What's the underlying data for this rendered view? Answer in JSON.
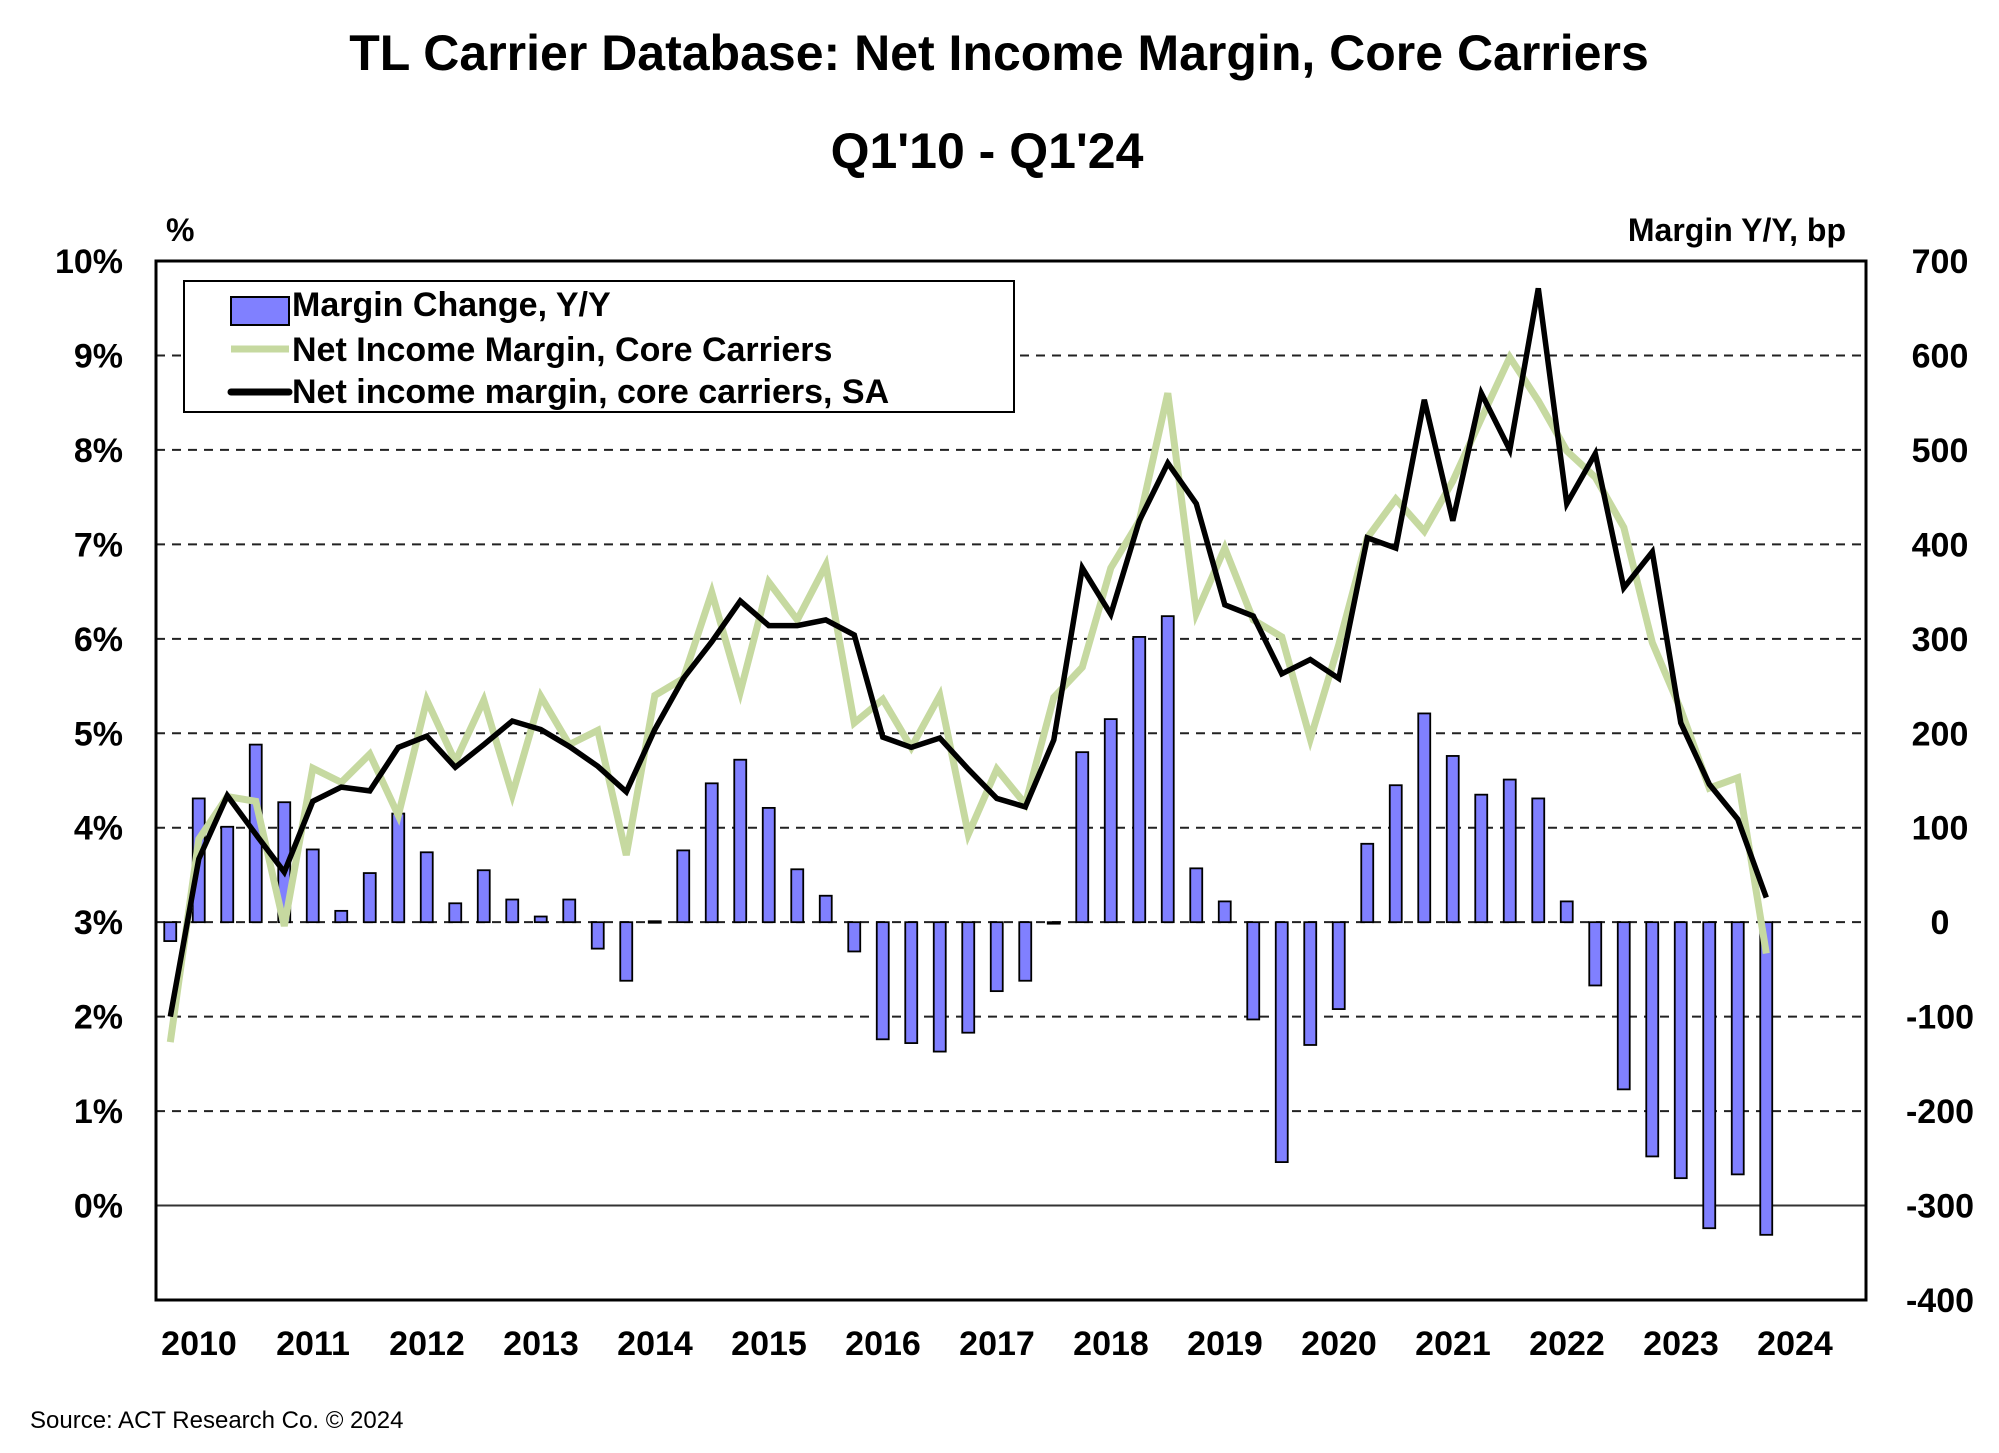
{
  "chart_data": {
    "type": "bar+line",
    "title": "TL Carrier Database: Net Income Margin, Core Carriers",
    "subtitle": "Q1'10 - Q1'24",
    "left_axis": {
      "label": "%",
      "range": [
        -1,
        10
      ],
      "ticks": [
        0,
        1,
        2,
        3,
        4,
        5,
        6,
        7,
        8,
        9,
        10
      ],
      "tick_labels": [
        "0%",
        "1%",
        "2%",
        "3%",
        "4%",
        "5%",
        "6%",
        "7%",
        "8%",
        "9%",
        "10%"
      ]
    },
    "right_axis": {
      "label": "Margin Y/Y, bp",
      "range": [
        -400,
        700
      ],
      "ticks": [
        -400,
        -300,
        -200,
        -100,
        0,
        100,
        200,
        300,
        400,
        500,
        600,
        700
      ],
      "tick_labels": [
        "-400",
        "-300",
        "-200",
        "-100",
        "0",
        "100",
        "200",
        "300",
        "400",
        "500",
        "600",
        "700"
      ]
    },
    "x_axis": {
      "quarter_slots": 60,
      "year_labels": [
        "2010",
        "2011",
        "2012",
        "2013",
        "2014",
        "2015",
        "2016",
        "2017",
        "2018",
        "2019",
        "2020",
        "2021",
        "2022",
        "2023",
        "2024"
      ]
    },
    "grid": "horizontal dashed",
    "legend_position": "top-left",
    "x": [
      "Q1'10",
      "Q2'10",
      "Q3'10",
      "Q4'10",
      "Q1'11",
      "Q2'11",
      "Q3'11",
      "Q4'11",
      "Q1'12",
      "Q2'12",
      "Q3'12",
      "Q4'12",
      "Q1'13",
      "Q2'13",
      "Q3'13",
      "Q4'13",
      "Q1'14",
      "Q2'14",
      "Q3'14",
      "Q4'14",
      "Q1'15",
      "Q2'15",
      "Q3'15",
      "Q4'15",
      "Q1'16",
      "Q2'16",
      "Q3'16",
      "Q4'16",
      "Q1'17",
      "Q2'17",
      "Q3'17",
      "Q4'17",
      "Q1'18",
      "Q2'18",
      "Q3'18",
      "Q4'18",
      "Q1'19",
      "Q2'19",
      "Q3'19",
      "Q4'19",
      "Q1'20",
      "Q2'20",
      "Q3'20",
      "Q4'20",
      "Q1'21",
      "Q2'21",
      "Q3'21",
      "Q4'21",
      "Q1'22",
      "Q2'22",
      "Q3'22",
      "Q4'22",
      "Q1'23",
      "Q2'23",
      "Q3'23",
      "Q4'23",
      "Q1'24"
    ],
    "series": [
      {
        "name": "Margin Change, Y/Y",
        "type": "bar",
        "axis": "right",
        "color": "#8080ff",
        "values": [
          -20,
          131,
          101,
          188,
          127,
          77,
          12,
          52,
          115,
          74,
          20,
          55,
          24,
          6,
          24,
          -28,
          -62,
          1,
          76,
          147,
          172,
          121,
          56,
          28,
          -31,
          -124,
          -128,
          -137,
          -117,
          -73,
          -62,
          -1,
          180,
          215,
          302,
          324,
          57,
          22,
          -103,
          -254,
          -130,
          -92,
          83,
          145,
          221,
          176,
          135,
          151,
          131,
          22,
          -67,
          -177,
          -248,
          -271,
          -324,
          -267,
          -331
        ]
      },
      {
        "name": "Net Income Margin, Core Carriers",
        "type": "line",
        "axis": "left",
        "color": "#c6d9a0",
        "values": [
          1.73,
          3.88,
          4.33,
          4.28,
          2.96,
          4.63,
          4.48,
          4.78,
          4.13,
          5.35,
          4.7,
          5.35,
          4.35,
          5.39,
          4.88,
          5.03,
          3.71,
          5.4,
          5.58,
          6.49,
          5.44,
          6.6,
          6.2,
          6.78,
          5.11,
          5.36,
          4.85,
          5.4,
          3.93,
          4.62,
          4.25,
          5.38,
          5.7,
          6.75,
          7.25,
          8.6,
          6.27,
          6.96,
          6.2,
          6.02,
          4.94,
          5.94,
          7.07,
          7.48,
          7.14,
          7.67,
          8.33,
          8.98,
          8.52,
          7.99,
          7.71,
          7.18,
          5.96,
          5.25,
          4.42,
          4.53,
          2.67
        ]
      },
      {
        "name": "Net income margin, core carriers, SA",
        "type": "line",
        "axis": "left",
        "color": "#000000",
        "values": [
          2.0,
          3.67,
          4.34,
          3.93,
          3.53,
          4.28,
          4.43,
          4.39,
          4.85,
          4.97,
          4.64,
          4.88,
          5.13,
          5.04,
          4.86,
          4.65,
          4.38,
          5.04,
          5.58,
          5.97,
          6.4,
          6.14,
          6.14,
          6.2,
          6.04,
          4.96,
          4.85,
          4.95,
          4.62,
          4.31,
          4.22,
          4.93,
          6.75,
          6.26,
          7.25,
          7.86,
          7.43,
          6.36,
          6.24,
          5.63,
          5.78,
          5.58,
          7.07,
          6.96,
          8.53,
          7.25,
          8.6,
          8.0,
          9.71,
          7.43,
          7.96,
          6.54,
          6.92,
          5.11,
          4.46,
          4.09,
          3.26
        ]
      }
    ],
    "source": "Source:  ACT Research Co. © 2024"
  }
}
